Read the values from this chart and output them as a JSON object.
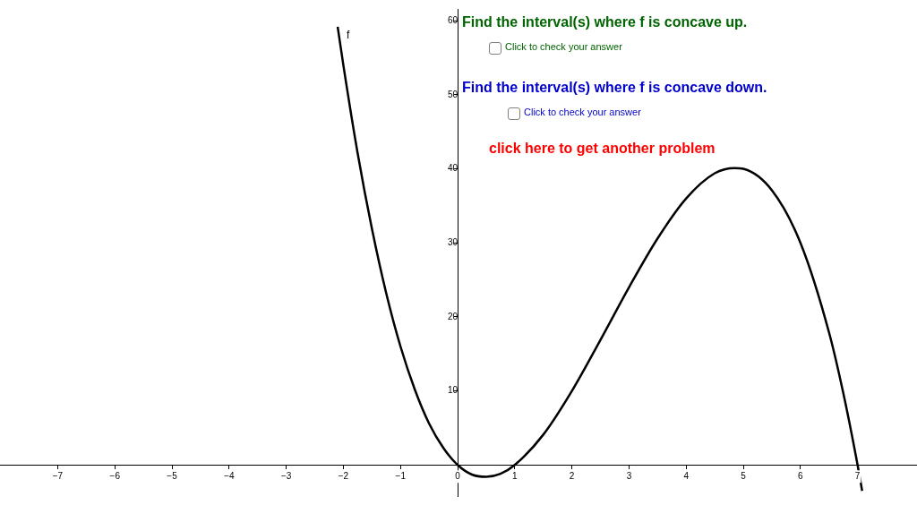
{
  "chart_data": {
    "type": "line",
    "xlim": [
      -8.01,
      8.04
    ],
    "ylim": [
      -4.2,
      61.6
    ],
    "xticks": [
      {
        "value": -7,
        "label": "−7"
      },
      {
        "value": -6,
        "label": "−6"
      },
      {
        "value": -5,
        "label": "−5"
      },
      {
        "value": -4,
        "label": "−4"
      },
      {
        "value": -3,
        "label": "−3"
      },
      {
        "value": -2,
        "label": "−2"
      },
      {
        "value": -1,
        "label": "−1"
      },
      0,
      1,
      2,
      3,
      4,
      5,
      6,
      7
    ],
    "yticks": [
      10,
      20,
      30,
      40,
      50,
      60
    ],
    "grid": false,
    "legend": false,
    "marker": "none",
    "line_style": "solid",
    "series": [
      {
        "name": "f",
        "color": "#000000",
        "x": [
          -2.1,
          -2,
          -1.75,
          -1.5,
          -1.25,
          -1,
          -0.75,
          -0.5,
          -0.25,
          0,
          0.25,
          0.5,
          0.75,
          1,
          1.5,
          2,
          2.5,
          3,
          3.5,
          4,
          4.5,
          4.85,
          5,
          5.5,
          6,
          6.5,
          6.75,
          7,
          7.08
        ],
        "values": [
          59.2,
          54,
          42.1,
          31.9,
          23.2,
          16,
          10.2,
          5.6,
          2.3,
          0,
          -1.3,
          -1.6,
          -1.2,
          0,
          4.1,
          10,
          16.9,
          24,
          30.6,
          36,
          39.4,
          40.1,
          40,
          37.1,
          30,
          17.9,
          9.7,
          0,
          -3.5
        ]
      }
    ],
    "annotations": [
      "Find the interval(s) where f is concave up.",
      "Click to check your answer",
      "Find the interval(s) where f is concave down.",
      "Click to check your answer",
      "click here to get another problem"
    ]
  }
}
